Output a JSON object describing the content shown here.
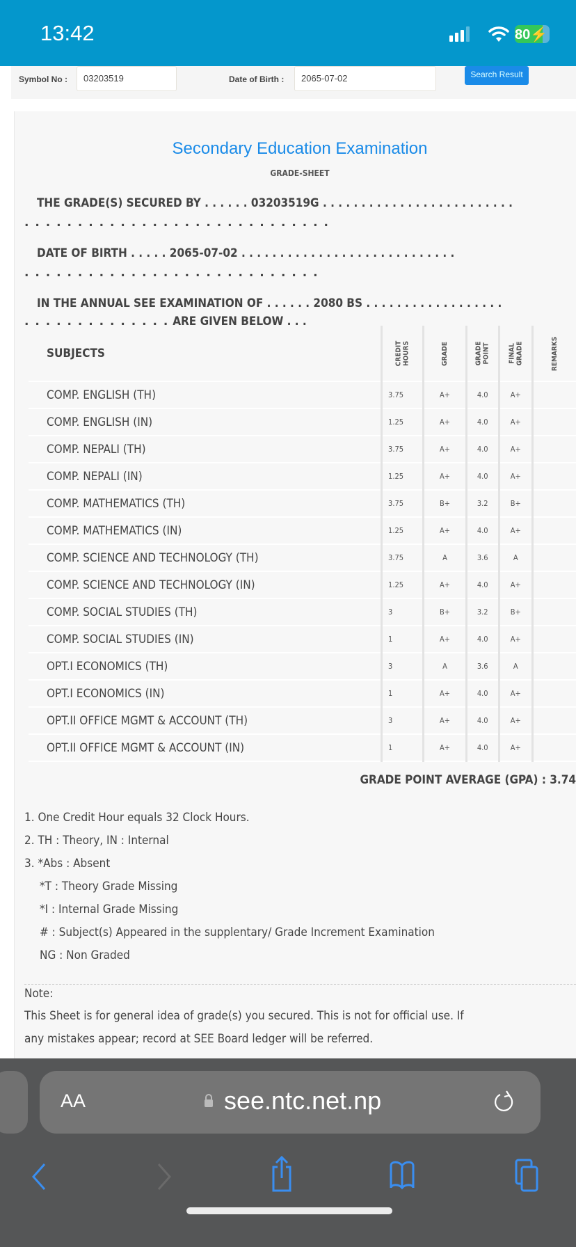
{
  "status_bar": {
    "time": "13:42",
    "battery": "80",
    "battery_level": 0.8,
    "charging": true
  },
  "search_form": {
    "symbol_label": "Symbol No :",
    "symbol_value": "03203519",
    "dob_label": "Date of Birth :",
    "dob_value": "2065-07-02",
    "search_button": "Search Result"
  },
  "sheet": {
    "title": "Secondary Education Examination",
    "subtitle": "GRADE-SHEET",
    "secured_by": {
      "label": "THE GRADE(S) SECURED BY",
      "lead": ". . . . . .",
      "value": "03203519G",
      "trail": ". . . . . . . . . . . . . . . . . . . . . . . . .",
      "wrap": ". . . . . . . . . . . . . . . . . . . . . . . . . . . . ."
    },
    "dob": {
      "label": "DATE OF BIRTH",
      "lead": ". . . . .",
      "value": "2065-07-02",
      "trail": ". . . . . . . . . . . . . . . . . . . . . . . . . . . .",
      "wrap": ". . . . . . . . . . . . . . . . . . . . . . . . . . . ."
    },
    "exam": {
      "label": "IN THE ANNUAL SEE EXAMINATION OF",
      "lead": ". . . . . .",
      "value": "2080 BS",
      "trail": ". . . . . . . . . . . . . . . . . .",
      "wrap": ". . . . . . . . . . . . . .",
      "end": "ARE GIVEN BELOW . . ."
    },
    "table": {
      "headers": {
        "subjects": "SUBJECTS",
        "credit_hours": "CREDIT\nHOURS",
        "grade": "GRADE",
        "grade_point": "GRADE\nPOINT",
        "final_grade": "FINAL\nGRADE",
        "remarks": "REMARKS"
      },
      "rows": [
        {
          "subject": "COMP. ENGLISH (TH)",
          "credit": "3.75",
          "grade": "A+",
          "point": "4.0",
          "final": "A+",
          "remarks": ""
        },
        {
          "subject": "COMP. ENGLISH (IN)",
          "credit": "1.25",
          "grade": "A+",
          "point": "4.0",
          "final": "A+",
          "remarks": ""
        },
        {
          "subject": "COMP. NEPALI (TH)",
          "credit": "3.75",
          "grade": "A+",
          "point": "4.0",
          "final": "A+",
          "remarks": ""
        },
        {
          "subject": "COMP. NEPALI (IN)",
          "credit": "1.25",
          "grade": "A+",
          "point": "4.0",
          "final": "A+",
          "remarks": ""
        },
        {
          "subject": "COMP. MATHEMATICS (TH)",
          "credit": "3.75",
          "grade": "B+",
          "point": "3.2",
          "final": "B+",
          "remarks": ""
        },
        {
          "subject": "COMP. MATHEMATICS (IN)",
          "credit": "1.25",
          "grade": "A+",
          "point": "4.0",
          "final": "A+",
          "remarks": ""
        },
        {
          "subject": "COMP. SCIENCE AND TECHNOLOGY (TH)",
          "credit": "3.75",
          "grade": "A",
          "point": "3.6",
          "final": "A",
          "remarks": ""
        },
        {
          "subject": "COMP. SCIENCE AND TECHNOLOGY (IN)",
          "credit": "1.25",
          "grade": "A+",
          "point": "4.0",
          "final": "A+",
          "remarks": ""
        },
        {
          "subject": "COMP. SOCIAL STUDIES (TH)",
          "credit": "3",
          "grade": "B+",
          "point": "3.2",
          "final": "B+",
          "remarks": ""
        },
        {
          "subject": "COMP. SOCIAL STUDIES (IN)",
          "credit": "1",
          "grade": "A+",
          "point": "4.0",
          "final": "A+",
          "remarks": ""
        },
        {
          "subject": "OPT.I ECONOMICS (TH)",
          "credit": "3",
          "grade": "A",
          "point": "3.6",
          "final": "A",
          "remarks": ""
        },
        {
          "subject": "OPT.I ECONOMICS (IN)",
          "credit": "1",
          "grade": "A+",
          "point": "4.0",
          "final": "A+",
          "remarks": ""
        },
        {
          "subject": "OPT.II OFFICE MGMT & ACCOUNT (TH)",
          "credit": "3",
          "grade": "A+",
          "point": "4.0",
          "final": "A+",
          "remarks": ""
        },
        {
          "subject": "OPT.II OFFICE MGMT & ACCOUNT (IN)",
          "credit": "1",
          "grade": "A+",
          "point": "4.0",
          "final": "A+",
          "remarks": ""
        }
      ]
    },
    "gpa": "GRADE POINT AVERAGE (GPA) : 3.74",
    "legend": [
      "1. One Credit Hour equals 32 Clock Hours.",
      "2. TH : Theory, IN : Internal",
      "3. *Abs : Absent",
      "*T : Theory Grade Missing",
      "*I : Internal Grade Missing",
      "# : Subject(s) Appeared in the supplentary/ Grade Increment Examination",
      "NG : Non Graded"
    ],
    "note_title": "Note:",
    "note_lines": [
      "This Sheet is for general idea of grade(s) you secured. This is not for official use. If",
      "any mistakes appear; record at SEE Board ledger will be referred."
    ]
  },
  "browser": {
    "aa": "AA",
    "url": "see.ntc.net.np"
  },
  "colors": {
    "status_bar": "#0497cc",
    "accent": "#1a8be8",
    "toolbar_icon": "#3a8ef0"
  }
}
